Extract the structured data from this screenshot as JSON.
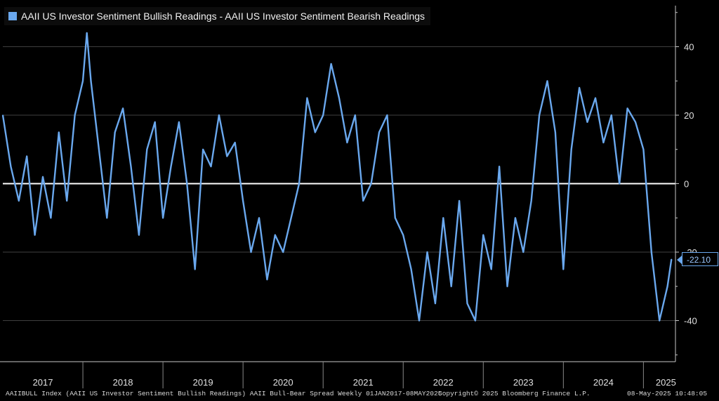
{
  "legend": {
    "label": "AAII US Investor Sentiment Bullish Readings - AAII US Investor Sentiment Bearish Readings",
    "color": "#6aa8ee"
  },
  "footer": {
    "left": "AAIIBULL Index (AAII US Investor Sentiment Bullish Readings) AAII Bull-Bear Spread  Weekly 01JAN2017-08MAY2025",
    "center": "Copyright© 2025 Bloomberg Finance L.P.",
    "right": "08-May-2025 10:48:05"
  },
  "last_value_label": "-22.10",
  "chart_data": {
    "type": "line",
    "xlabel": "",
    "ylabel": "",
    "ylim": [
      -52,
      52
    ],
    "y_ticks": [
      "40",
      "20",
      "0",
      "-20",
      "-40"
    ],
    "x_tick_labels": [
      "2017",
      "2018",
      "2019",
      "2020",
      "2021",
      "2022",
      "2023",
      "2024",
      "2025"
    ],
    "zero_line": true,
    "grid": true,
    "series": [
      {
        "color": "#6aa8ee",
        "x": [
          2017.0,
          2017.1,
          2017.2,
          2017.3,
          2017.4,
          2017.5,
          2017.6,
          2017.7,
          2017.8,
          2017.9,
          2018.0,
          2018.05,
          2018.1,
          2018.2,
          2018.3,
          2018.4,
          2018.5,
          2018.6,
          2018.7,
          2018.8,
          2018.9,
          2019.0,
          2019.1,
          2019.2,
          2019.3,
          2019.4,
          2019.5,
          2019.6,
          2019.7,
          2019.8,
          2019.9,
          2020.0,
          2020.1,
          2020.2,
          2020.3,
          2020.4,
          2020.5,
          2020.6,
          2020.7,
          2020.8,
          2020.9,
          2021.0,
          2021.1,
          2021.2,
          2021.3,
          2021.4,
          2021.5,
          2021.6,
          2021.7,
          2021.8,
          2021.9,
          2022.0,
          2022.1,
          2022.2,
          2022.3,
          2022.4,
          2022.5,
          2022.6,
          2022.7,
          2022.8,
          2022.9,
          2023.0,
          2023.1,
          2023.2,
          2023.3,
          2023.4,
          2023.5,
          2023.6,
          2023.7,
          2023.8,
          2023.9,
          2024.0,
          2024.1,
          2024.2,
          2024.3,
          2024.4,
          2024.5,
          2024.6,
          2024.7,
          2024.8,
          2024.9,
          2025.0,
          2025.1,
          2025.2,
          2025.3,
          2025.35
        ],
        "y": [
          20,
          5,
          -5,
          8,
          -15,
          2,
          -10,
          15,
          -5,
          20,
          30,
          44,
          30,
          10,
          -10,
          15,
          22,
          5,
          -15,
          10,
          18,
          -10,
          5,
          18,
          0,
          -25,
          10,
          5,
          20,
          8,
          12,
          -5,
          -20,
          -10,
          -28,
          -15,
          -20,
          -10,
          0,
          25,
          15,
          20,
          35,
          25,
          12,
          20,
          -5,
          0,
          15,
          20,
          -10,
          -15,
          -25,
          -40,
          -20,
          -35,
          -10,
          -30,
          -5,
          -35,
          -40,
          -15,
          -25,
          5,
          -30,
          -10,
          -20,
          -5,
          20,
          30,
          15,
          -25,
          10,
          28,
          18,
          25,
          12,
          20,
          0,
          22,
          18,
          10,
          -20,
          -40,
          -30,
          -22.1
        ]
      }
    ]
  }
}
